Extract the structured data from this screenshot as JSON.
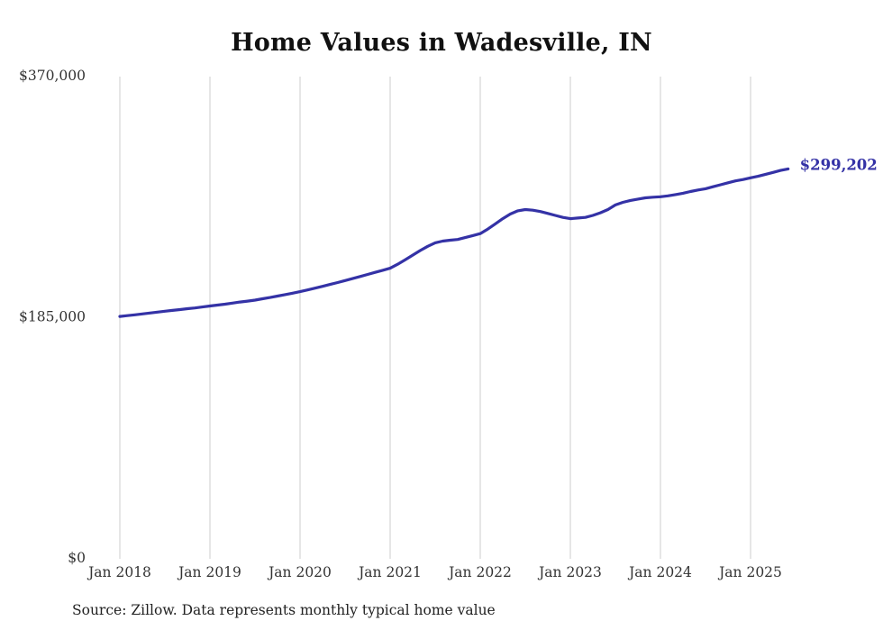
{
  "chart_data": {
    "type": "line",
    "title": "Home Values in Wadesville, IN",
    "source": "Source: Zillow. Data represents monthly typical home value",
    "end_label": "$299,202",
    "latest_value": 299202,
    "line_color": "#3432a6",
    "grid_color": "#cccccc",
    "axis_text_color": "#333333",
    "ylim": [
      0,
      370000
    ],
    "grid": "vertical-only",
    "legend_position": "none",
    "y_ticks": [
      {
        "value": 0,
        "label": "$0"
      },
      {
        "value": 185000,
        "label": "$185,000"
      },
      {
        "value": 370000,
        "label": "$370,000"
      }
    ],
    "x_ticks": [
      "Jan 2018",
      "Jan 2019",
      "Jan 2020",
      "Jan 2021",
      "Jan 2022",
      "Jan 2023",
      "Jan 2024",
      "Jan 2025"
    ],
    "months": [
      "2018-01",
      "2018-02",
      "2018-03",
      "2018-04",
      "2018-05",
      "2018-06",
      "2018-07",
      "2018-08",
      "2018-09",
      "2018-10",
      "2018-11",
      "2018-12",
      "2019-01",
      "2019-02",
      "2019-03",
      "2019-04",
      "2019-05",
      "2019-06",
      "2019-07",
      "2019-08",
      "2019-09",
      "2019-10",
      "2019-11",
      "2019-12",
      "2020-01",
      "2020-02",
      "2020-03",
      "2020-04",
      "2020-05",
      "2020-06",
      "2020-07",
      "2020-08",
      "2020-09",
      "2020-10",
      "2020-11",
      "2020-12",
      "2021-01",
      "2021-02",
      "2021-03",
      "2021-04",
      "2021-05",
      "2021-06",
      "2021-07",
      "2021-08",
      "2021-09",
      "2021-10",
      "2021-11",
      "2021-12",
      "2022-01",
      "2022-02",
      "2022-03",
      "2022-04",
      "2022-05",
      "2022-06",
      "2022-07",
      "2022-08",
      "2022-09",
      "2022-10",
      "2022-11",
      "2022-12",
      "2023-01",
      "2023-02",
      "2023-03",
      "2023-04",
      "2023-05",
      "2023-06",
      "2023-07",
      "2023-08",
      "2023-09",
      "2023-10",
      "2023-11",
      "2023-12",
      "2024-01",
      "2024-02",
      "2024-03",
      "2024-04",
      "2024-05",
      "2024-06",
      "2024-07",
      "2024-08",
      "2024-09",
      "2024-10",
      "2024-11",
      "2024-12",
      "2025-01",
      "2025-02",
      "2025-03",
      "2025-04",
      "2025-05",
      "2025-06"
    ],
    "values": [
      186000,
      186600,
      187200,
      187900,
      188600,
      189300,
      190000,
      190600,
      191200,
      191900,
      192500,
      193200,
      194000,
      194700,
      195400,
      196200,
      197000,
      197700,
      198500,
      199500,
      200500,
      201600,
      202700,
      203800,
      205000,
      206300,
      207700,
      209100,
      210500,
      212000,
      213500,
      215000,
      216600,
      218200,
      219800,
      221400,
      223000,
      226000,
      229500,
      233000,
      236500,
      239800,
      242500,
      243800,
      244500,
      245000,
      246500,
      248000,
      249500,
      253000,
      257000,
      261000,
      264500,
      267000,
      268000,
      267500,
      266500,
      265000,
      263500,
      262000,
      261000,
      261500,
      262000,
      263500,
      265500,
      268000,
      271500,
      273500,
      275000,
      276000,
      277000,
      277500,
      277800,
      278500,
      279500,
      280500,
      281800,
      283000,
      284000,
      285500,
      287000,
      288500,
      290000,
      291000,
      292300,
      293500,
      295000,
      296500,
      298000,
      299202
    ]
  }
}
